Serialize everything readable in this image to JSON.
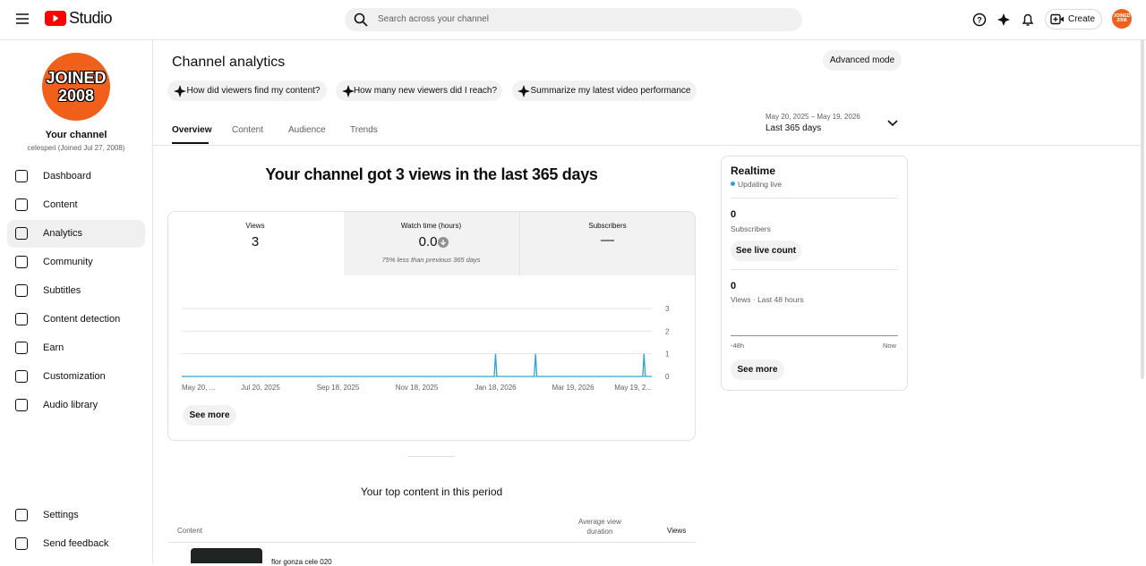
{
  "topbar": {
    "logo": "Studio",
    "search_placeholder": "Search across your channel",
    "create": "Create",
    "avatar": "JOINED 2008"
  },
  "sidebar": {
    "avatar_lines": [
      "JOINED",
      "2008"
    ],
    "channel_title": "Your channel",
    "channel_subtitle": "celesperi (Joined Jul 27, 2008)",
    "nav": [
      "Dashboard",
      "Content",
      "Analytics",
      "Community",
      "Subtitles",
      "Content detection",
      "Earn",
      "Customization",
      "Audio library"
    ],
    "bottom": [
      "Settings",
      "Send feedback"
    ]
  },
  "header": {
    "title": "Channel analytics",
    "advanced_mode": "Advanced mode",
    "chips": [
      "How did viewers find my content?",
      "How many new viewers did I reach?",
      "Summarize my latest video performance"
    ],
    "tabs": [
      "Overview",
      "Content",
      "Audience",
      "Trends"
    ],
    "date_range": "May 20, 2025 – May 19, 2026",
    "period": "Last 365 days"
  },
  "summary": {
    "headline": "Your channel got 3 views in the last 365 days",
    "metrics": [
      {
        "label": "Views",
        "value": "3"
      },
      {
        "label": "Watch time (hours)",
        "value": "0.0",
        "note": "75% less than previous 365 days"
      },
      {
        "label": "Subscribers",
        "value": "—"
      }
    ],
    "see_more": "See more"
  },
  "overview_chart": {
    "type": "line",
    "x": [
      "2025-05-20",
      "2026-01-17",
      "2026-01-18",
      "2026-01-19",
      "2026-02-17",
      "2026-02-18",
      "2026-02-19",
      "2026-05-12",
      "2026-05-13",
      "2026-05-14",
      "2026-05-19"
    ],
    "series": [
      {
        "name": "Views",
        "color": "#2fa3d6",
        "values": [
          0,
          0,
          1,
          0,
          0,
          1,
          0,
          0,
          1,
          0,
          0
        ]
      }
    ],
    "xlim": [
      "2025-05-20",
      "2026-05-19"
    ],
    "xticks": [
      {
        "value": "2025-05-20",
        "label": "May 20, ..."
      },
      {
        "value": "2025-07-20",
        "label": "Jul 20, 2025"
      },
      {
        "value": "2025-09-18",
        "label": "Sep 18, 2025"
      },
      {
        "value": "2025-11-18",
        "label": "Nov 18, 2025"
      },
      {
        "value": "2026-01-18",
        "label": "Jan 18, 2026"
      },
      {
        "value": "2026-03-19",
        "label": "Mar 19, 2026"
      },
      {
        "value": "2026-05-19",
        "label": "May 19, 2..."
      }
    ],
    "ylim": [
      0,
      3
    ],
    "yticks": [
      0,
      1,
      2,
      3
    ],
    "grid": true
  },
  "realtime": {
    "title": "Realtime",
    "status": "Updating live",
    "subscribers": "0",
    "subscribers_label": "Subscribers",
    "see_live_count": "See live count",
    "views": "0",
    "views_label": "Views · Last 48 hours",
    "axis_start": "-48h",
    "axis_end": "Now",
    "see_more": "See more"
  },
  "top_content": {
    "title": "Your top content in this period",
    "columns": [
      "Content",
      "Average view duration",
      "Views"
    ],
    "rows": [
      {
        "title": "flor gonza cele 020"
      }
    ]
  }
}
